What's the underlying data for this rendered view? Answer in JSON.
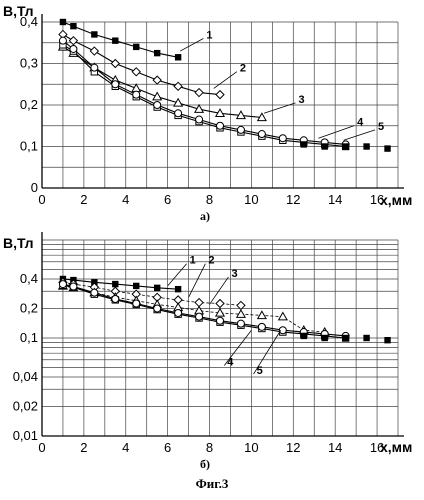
{
  "figure_caption": "Фиг.3",
  "chart_data": [
    {
      "type": "scatter",
      "panel_label": "а)",
      "xlabel": "х,мм",
      "ylabel": "В,Тл",
      "xlim": [
        0,
        17
      ],
      "ylim": [
        0,
        0.4
      ],
      "y_scale": "linear",
      "x_ticks": [
        "0",
        "2",
        "4",
        "6",
        "8",
        "10",
        "12",
        "14",
        "16"
      ],
      "y_ticks": [
        "0",
        "0,1",
        "0,2",
        "0,3",
        "0,4"
      ],
      "grid": true,
      "series": [
        {
          "name": "1",
          "marker": "filled-square",
          "x": [
            1,
            1.5,
            2.5,
            3.5,
            4.5,
            5.5,
            6.5
          ],
          "y": [
            0.4,
            0.39,
            0.37,
            0.355,
            0.34,
            0.325,
            0.315
          ]
        },
        {
          "name": "2",
          "marker": "open-diamond",
          "x": [
            1,
            1.5,
            2.5,
            3.5,
            4.5,
            5.5,
            6.5,
            7.5,
            8.5
          ],
          "y": [
            0.37,
            0.355,
            0.33,
            0.3,
            0.28,
            0.26,
            0.245,
            0.23,
            0.225
          ]
        },
        {
          "name": "3",
          "marker": "open-triangle",
          "x": [
            1,
            1.5,
            2.5,
            3.5,
            4.5,
            5.5,
            6.5,
            7.5,
            8.5,
            9.5,
            10.5
          ],
          "y": [
            0.34,
            0.325,
            0.29,
            0.26,
            0.24,
            0.22,
            0.205,
            0.19,
            0.18,
            0.175,
            0.17
          ]
        },
        {
          "name": "4",
          "marker": "open-square",
          "x": [
            1,
            1.5,
            2.5,
            3.5,
            4.5,
            5.5,
            6.5,
            7.5,
            8.5,
            9.5,
            10.5,
            11.5,
            12.5,
            13.5,
            14.5
          ],
          "y": [
            0.345,
            0.33,
            0.28,
            0.245,
            0.22,
            0.195,
            0.175,
            0.16,
            0.145,
            0.135,
            0.125,
            0.115,
            0.11,
            0.105,
            0.1
          ]
        },
        {
          "name": "5",
          "marker": "open-circle",
          "x": [
            1,
            1.5,
            2.5,
            3.5,
            4.5,
            5.5,
            6.5,
            7.5,
            8.5,
            9.5,
            10.5,
            11.5,
            12.5,
            13.5,
            14.5
          ],
          "y": [
            0.355,
            0.335,
            0.29,
            0.25,
            0.225,
            0.2,
            0.18,
            0.165,
            0.15,
            0.14,
            0.13,
            0.12,
            0.115,
            0.11,
            0.105
          ]
        },
        {
          "name": "",
          "marker": "filled-square",
          "x": [
            12.5,
            13.5,
            14.5,
            15.5,
            16.5
          ],
          "y": [
            0.105,
            0.1,
            0.1,
            0.1,
            0.095
          ]
        }
      ]
    },
    {
      "type": "scatter",
      "panel_label": "б)",
      "xlabel": "х,мм",
      "ylabel": "В,Тл",
      "xlim": [
        0,
        17
      ],
      "ylim": [
        0.01,
        1
      ],
      "y_scale": "log",
      "x_ticks": [
        "0",
        "2",
        "4",
        "6",
        "8",
        "10",
        "12",
        "14",
        "16"
      ],
      "y_ticks": [
        "0,4",
        "0,2",
        "0,1",
        "0,04",
        "0,02",
        "0,01"
      ],
      "grid": true,
      "series": [
        {
          "name": "1",
          "marker": "filled-square",
          "x": [
            1,
            1.5,
            2.5,
            3.5,
            4.5,
            5.5,
            6.5
          ],
          "y": [
            0.4,
            0.39,
            0.37,
            0.355,
            0.34,
            0.325,
            0.315
          ]
        },
        {
          "name": "2",
          "marker": "open-diamond",
          "x": [
            1,
            1.5,
            2.5,
            3.5,
            4.5,
            5.5,
            6.5,
            7.5,
            8.5,
            9.5
          ],
          "y": [
            0.37,
            0.355,
            0.33,
            0.3,
            0.28,
            0.26,
            0.245,
            0.23,
            0.225,
            0.215
          ]
        },
        {
          "name": "3",
          "marker": "open-triangle",
          "x": [
            1,
            1.5,
            2.5,
            3.5,
            4.5,
            5.5,
            6.5,
            7.5,
            8.5,
            9.5,
            10.5,
            11.5,
            12.5,
            13.5
          ],
          "y": [
            0.34,
            0.325,
            0.29,
            0.26,
            0.24,
            0.22,
            0.205,
            0.19,
            0.18,
            0.175,
            0.17,
            0.165,
            0.12,
            0.115
          ]
        },
        {
          "name": "4",
          "marker": "open-square",
          "x": [
            1,
            1.5,
            2.5,
            3.5,
            4.5,
            5.5,
            6.5,
            7.5,
            8.5,
            9.5,
            10.5,
            11.5,
            12.5,
            13.5,
            14.5
          ],
          "y": [
            0.345,
            0.33,
            0.28,
            0.245,
            0.22,
            0.195,
            0.175,
            0.16,
            0.145,
            0.135,
            0.125,
            0.115,
            0.11,
            0.105,
            0.1
          ]
        },
        {
          "name": "5",
          "marker": "open-circle",
          "x": [
            1,
            1.5,
            2.5,
            3.5,
            4.5,
            5.5,
            6.5,
            7.5,
            8.5,
            9.5,
            10.5,
            11.5,
            12.5,
            13.5,
            14.5
          ],
          "y": [
            0.355,
            0.335,
            0.29,
            0.25,
            0.225,
            0.2,
            0.18,
            0.165,
            0.15,
            0.14,
            0.13,
            0.12,
            0.115,
            0.11,
            0.105
          ]
        },
        {
          "name": "",
          "marker": "filled-square",
          "x": [
            12.5,
            13.5,
            14.5,
            15.5,
            16.5
          ],
          "y": [
            0.105,
            0.1,
            0.1,
            0.1,
            0.095
          ]
        }
      ]
    }
  ]
}
